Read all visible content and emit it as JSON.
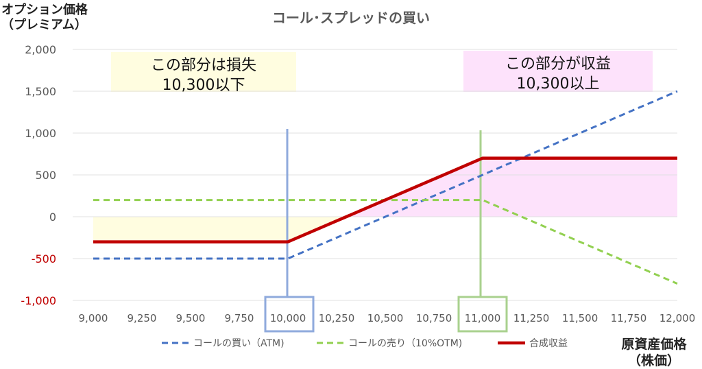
{
  "chart_data": {
    "type": "line",
    "title": "コール･スプレッドの買い",
    "ylabel": [
      "オプション価格",
      "（プレミアム）"
    ],
    "xlabel": [
      "原資産価格",
      "（株価）"
    ],
    "x": [
      9000,
      9250,
      9500,
      9750,
      10000,
      10250,
      10500,
      10750,
      11000,
      11250,
      11500,
      11750,
      12000
    ],
    "x_tick_labels": [
      "9,000",
      "9,250",
      "9,500",
      "9,750",
      "10,000",
      "10,250",
      "10,500",
      "10,750",
      "11,000",
      "11,250",
      "11,500",
      "11,750",
      "12,000"
    ],
    "y_tick_labels": [
      "2,000",
      "1,500",
      "1,000",
      "500",
      "0",
      "-500",
      "-1,000"
    ],
    "y_ticks": [
      2000,
      1500,
      1000,
      500,
      0,
      -500,
      -1000
    ],
    "xlim": [
      9000,
      12000
    ],
    "ylim": [
      -1000,
      2000
    ],
    "grid": true,
    "legend_position": "bottom",
    "series": [
      {
        "name": "コールの買い（ATM)",
        "style": "dashed",
        "color": "#4472c4",
        "values": [
          -500,
          -500,
          -500,
          -500,
          -500,
          -250,
          0,
          250,
          500,
          750,
          1000,
          1250,
          1500
        ]
      },
      {
        "name": "コールの売り（10%OTM)",
        "style": "dashed",
        "color": "#92d050",
        "values": [
          200,
          200,
          200,
          200,
          200,
          200,
          200,
          200,
          200,
          -50,
          -300,
          -550,
          -800
        ]
      },
      {
        "name": "合成収益",
        "style": "solid",
        "color": "#c00000",
        "values": [
          -300,
          -300,
          -300,
          -300,
          -300,
          -50,
          200,
          450,
          700,
          700,
          700,
          700,
          700
        ]
      }
    ],
    "annotations": {
      "loss": {
        "lines": [
          "この部分は損失",
          "10,300以下"
        ],
        "color": "#fffde0"
      },
      "profit": {
        "lines": [
          "この部分が収益",
          "10,300以上"
        ],
        "color": "#fde2fb"
      }
    },
    "markers": [
      {
        "x": 10000,
        "label": "10,000",
        "color": "#8faadc"
      },
      {
        "x": 11000,
        "label": "11,000",
        "color": "#a9d18e"
      }
    ],
    "negative_tick_color": "#c00000",
    "grid_color": "#e0e0e0"
  }
}
